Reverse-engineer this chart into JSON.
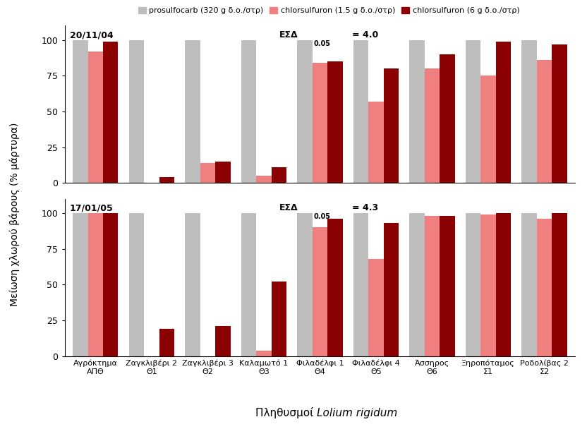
{
  "categories_line1": [
    "Αγρόκτημα",
    "Ζαγκλιβέρι 2",
    "Ζαγκλιβέρι 3",
    "Καλαμωτό 1",
    "Φιλαδέλφι 1",
    "Φιλαδέλφι 4",
    "Άσσηρος",
    "Ξηροπόταμος",
    "Ροδολίβας 2"
  ],
  "categories_line2": [
    "ΑΠΘ",
    "Θ1",
    "Θ2",
    "Θ3",
    "Θ4",
    "Θ5",
    "Θ6",
    "Σ1",
    "Σ2"
  ],
  "top_data": {
    "date_label": "20/11/04",
    "esd_main": "ΕΣΔ",
    "esd_sub": "0.05",
    "esd_val": "= 4.0",
    "prosulfocarb": [
      100,
      100,
      100,
      100,
      100,
      100,
      100,
      100,
      100
    ],
    "chlorsulfuron_low": [
      92,
      0,
      14,
      5,
      84,
      57,
      80,
      75,
      86
    ],
    "chlorsulfuron_high": [
      99,
      4,
      15,
      11,
      85,
      80,
      90,
      99,
      97
    ]
  },
  "bottom_data": {
    "date_label": "17/01/05",
    "esd_main": "ΕΣΔ",
    "esd_sub": "0.05",
    "esd_val": "= 4.3",
    "prosulfocarb": [
      100,
      100,
      100,
      100,
      100,
      100,
      100,
      100,
      100
    ],
    "chlorsulfuron_low": [
      100,
      0,
      0,
      4,
      90,
      68,
      98,
      99,
      96
    ],
    "chlorsulfuron_high": [
      100,
      19,
      21,
      52,
      96,
      93,
      98,
      100,
      100
    ]
  },
  "colors": {
    "prosulfocarb": "#bebebe",
    "chlorsulfuron_low": "#f08080",
    "chlorsulfuron_high": "#8b0000"
  },
  "legend_labels": [
    "prosulfocarb (320 g δ.ο./στρ)",
    "chlorsulfuron (1.5 g δ.ο./στρ)",
    "chlorsulfuron (6 g δ.ο./στρ)"
  ],
  "ylabel": "Μείωση χλωρού βάρους (% μάρτυρα)",
  "yticks": [
    0,
    25,
    50,
    75,
    100
  ],
  "bar_width": 0.27
}
